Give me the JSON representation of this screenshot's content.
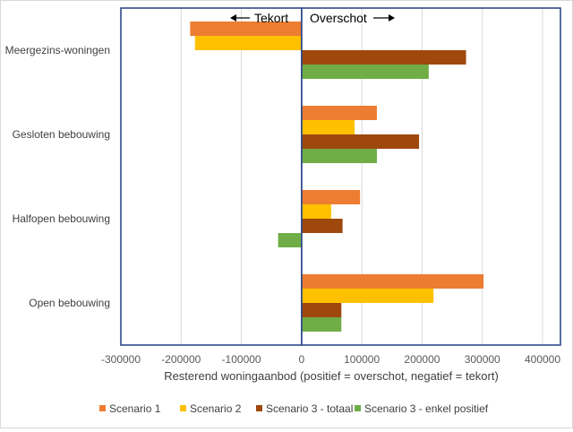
{
  "chart_data": {
    "type": "bar",
    "orientation": "horizontal",
    "categories": [
      "Meergezins-woningen",
      "Gesloten bebouwing",
      "Halfopen bebouwing",
      "Open bebouwing"
    ],
    "series": [
      {
        "name": "Scenario 1",
        "color": "#ED7D31",
        "values": [
          -185000,
          125000,
          97000,
          302000
        ]
      },
      {
        "name": "Scenario 2",
        "color": "#FFC000",
        "values": [
          -177000,
          88000,
          49000,
          219000
        ]
      },
      {
        "name": "Scenario 3 - totaal",
        "color": "#9E480E",
        "values": [
          273000,
          195000,
          68000,
          66000
        ]
      },
      {
        "name": "Scenario 3 - enkel positief",
        "color": "#70AD47",
        "values": [
          211000,
          125000,
          -39000,
          66000
        ]
      }
    ],
    "xlabel": "Resterend woningaanbod (positief = overschot, negatief = tekort)",
    "xlim": [
      -300000,
      400000
    ],
    "xticks": [
      -300000,
      -200000,
      -100000,
      0,
      100000,
      200000,
      300000,
      400000
    ],
    "xtick_labels": [
      "-300000",
      "-200000",
      "-100000",
      "0",
      "100000",
      "200000",
      "300000",
      "400000"
    ],
    "annotations": {
      "left": "Tekort",
      "right": "Overschot"
    },
    "grid": "vertical",
    "legend_position": "bottom"
  }
}
